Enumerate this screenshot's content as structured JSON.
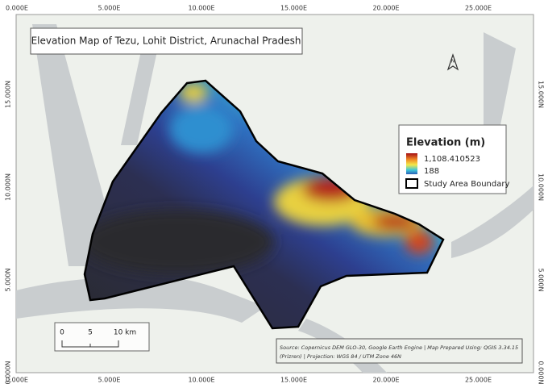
{
  "map": {
    "title": "Elevation Map of Tezu, Lohit District, Arunachal Pradesh",
    "legend": {
      "title": "Elevation (m)",
      "max_label": "1,108.410523",
      "min_label": "188",
      "boundary_label": "Study Area Boundary"
    },
    "scale_bar": {
      "labels": [
        "0",
        "5",
        "10 km"
      ]
    },
    "source": [
      "Source: Copernicus DEM GLO-30, Google Earth Engine | Map Prepared Using: QGIS 3.34.15",
      "(Prizren) | Projection: WGS 84 / UTM Zone 46N"
    ],
    "north_arrow": "N",
    "grid": {
      "x_labels": [
        "0.000E",
        "5.000E",
        "10.000E",
        "15.000E",
        "20.000E",
        "25.000E"
      ],
      "y_labels": [
        "0.000N",
        "5.000N",
        "10.000N",
        "15.000N"
      ]
    }
  }
}
